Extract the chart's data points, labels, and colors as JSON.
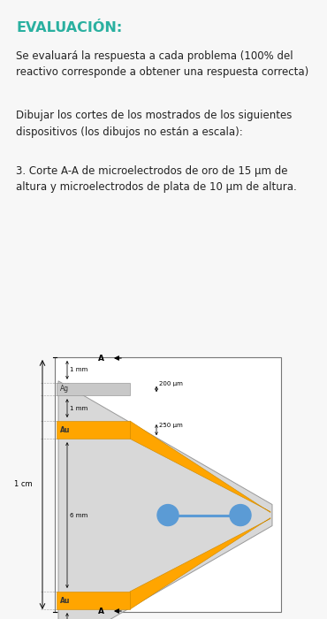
{
  "bg_color": "#f7f7f7",
  "title_color": "#2ab0a0",
  "title_text": "EVALUACIÓN:",
  "body_text1": "Se evaluará la respuesta a cada problema (100% del\nreactivo corresponde a obtener una respuesta correcta)",
  "body_text2": "Dibujar los cortes de los mostrados de los siguientes\ndispositivos (los dibujos no están a escala):",
  "body_text3": "3. Corte A-A de microelectrodos de oro de 15 μm de\naltura y microelectrodos de plata de 10 μm de altura.",
  "ag_color": "#c8c8c8",
  "au_color": "#FFA500",
  "blue_color": "#5B9BD5",
  "gray_trap": "#d8d8d8"
}
